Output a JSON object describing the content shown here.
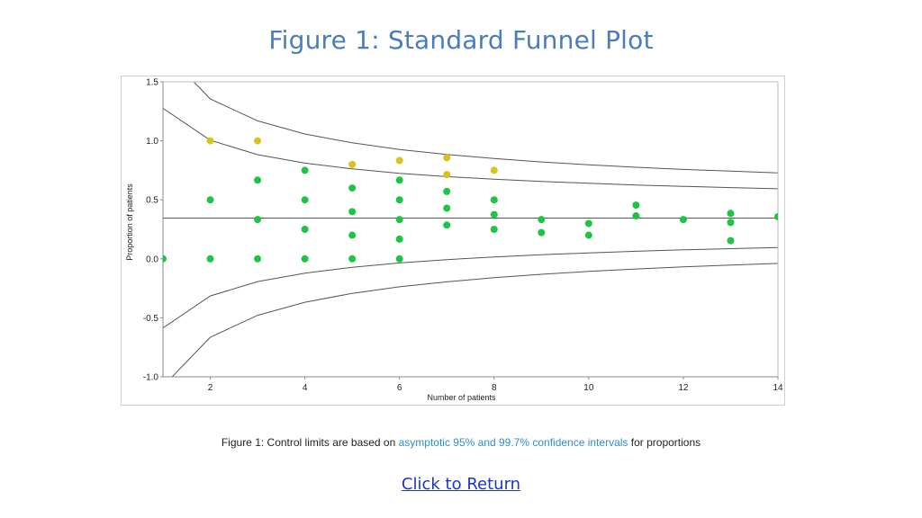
{
  "page": {
    "title": "Figure 1: Standard Funnel Plot",
    "caption_prefix": "Figure 1: Control limits are based on ",
    "caption_link": "asymptotic 95% and 99.7% confidence intervals",
    "caption_suffix": " for proportions",
    "return_link": "Click to Return"
  },
  "colors": {
    "inside_point": "#1ec443",
    "outside_point": "#d8c21e",
    "limit_line": "#555555",
    "caption_link": "#2f8ec4",
    "title": "#4a7ebb"
  },
  "chart_data": {
    "type": "scatter",
    "title": "",
    "xlabel": "Number of patients",
    "ylabel": "Proportion of patients",
    "xlim": [
      1,
      14
    ],
    "ylim": [
      -1.0,
      1.5
    ],
    "xticks": [
      2,
      4,
      6,
      8,
      10,
      12,
      14
    ],
    "yticks": [
      1.5,
      1.0,
      0.5,
      0.0,
      -0.5,
      -1.0
    ],
    "ytick_labels": [
      "1.5",
      "1.0",
      "0.5",
      "0.0",
      "-0.5",
      "-1.0"
    ],
    "grid": false,
    "center_line": 0.345,
    "limits": {
      "n": [
        1,
        2,
        3,
        4,
        5,
        6,
        7,
        8,
        9,
        10,
        11,
        12,
        13,
        14
      ],
      "inner_upper": [
        1.276,
        1.005,
        0.883,
        0.811,
        0.762,
        0.725,
        0.697,
        0.675,
        0.656,
        0.64,
        0.626,
        0.614,
        0.604,
        0.594
      ],
      "inner_lower": [
        -0.586,
        -0.315,
        -0.193,
        -0.121,
        -0.072,
        -0.035,
        -0.007,
        0.015,
        0.034,
        0.05,
        0.064,
        0.076,
        0.086,
        0.096
      ],
      "outer_upper": [
        1.771,
        1.355,
        1.169,
        1.058,
        0.983,
        0.927,
        0.885,
        0.85,
        0.821,
        0.797,
        0.776,
        0.758,
        0.743,
        0.729
      ],
      "outer_lower": [
        -1.081,
        -0.665,
        -0.479,
        -0.368,
        -0.293,
        -0.237,
        -0.195,
        -0.16,
        -0.131,
        -0.107,
        -0.086,
        -0.068,
        -0.053,
        -0.039
      ]
    },
    "series": [
      {
        "color": "#1ec443",
        "points": [
          [
            1,
            0
          ],
          [
            2,
            0.5
          ],
          [
            2,
            0
          ],
          [
            3,
            0.667
          ],
          [
            3,
            0.333
          ],
          [
            3,
            0
          ],
          [
            4,
            0.75
          ],
          [
            4,
            0.5
          ],
          [
            4,
            0.25
          ],
          [
            4,
            0
          ],
          [
            5,
            0.6
          ],
          [
            5,
            0.4
          ],
          [
            5,
            0.2
          ],
          [
            5,
            0
          ],
          [
            6,
            0.667
          ],
          [
            6,
            0.5
          ],
          [
            6,
            0.333
          ],
          [
            6,
            0.167
          ],
          [
            6,
            0
          ],
          [
            7,
            0.571
          ],
          [
            7,
            0.429
          ],
          [
            7,
            0.286
          ],
          [
            8,
            0.5
          ],
          [
            8,
            0.375
          ],
          [
            8,
            0.25
          ],
          [
            9,
            0.333
          ],
          [
            9,
            0.222
          ],
          [
            10,
            0.3
          ],
          [
            10,
            0.2
          ],
          [
            11,
            0.455
          ],
          [
            11,
            0.364
          ],
          [
            12,
            0.333
          ],
          [
            13,
            0.385
          ],
          [
            13,
            0.308
          ],
          [
            13,
            0.154
          ],
          [
            14,
            0.357
          ]
        ]
      },
      {
        "color": "#d8c21e",
        "points": [
          [
            2,
            1.0
          ],
          [
            3,
            1.0
          ],
          [
            5,
            0.8
          ],
          [
            6,
            0.833
          ],
          [
            7,
            0.857
          ],
          [
            7,
            0.714
          ],
          [
            8,
            0.75
          ]
        ]
      }
    ]
  }
}
